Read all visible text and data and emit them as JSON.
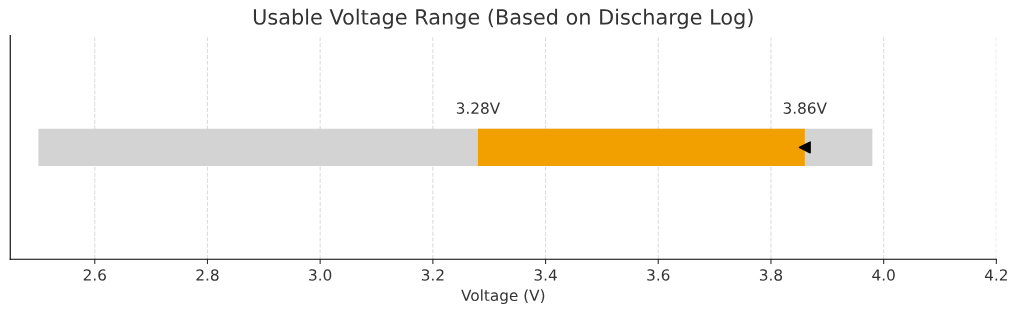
{
  "chart_data": {
    "type": "bar",
    "orientation": "horizontal",
    "title": "Usable Voltage Range (Based on Discharge Log)",
    "xlabel": "Voltage (V)",
    "categories": [
      null
    ],
    "series": [
      {
        "color": "#d3d3d3",
        "values": [
          1.48
        ],
        "base": [
          2.5
        ]
      },
      {
        "color": "#f2a000",
        "values": [
          0.58
        ],
        "base": [
          3.28
        ]
      },
      {
        "type": "scatter",
        "color": "#000000",
        "marker": "triangle",
        "values": [
          3.86
        ]
      }
    ],
    "annotations": [
      "3.28V",
      "3.86V"
    ],
    "xlim": [
      2.45,
      4.2
    ],
    "xticks": [
      2.6,
      2.8,
      {
        "value": 3,
        "label": "3.0"
      },
      3.2,
      3.4,
      3.6,
      3.8,
      {
        "value": 4,
        "label": "4.0"
      },
      4.2
    ],
    "grid": "x",
    "tick_labels": "x"
  }
}
